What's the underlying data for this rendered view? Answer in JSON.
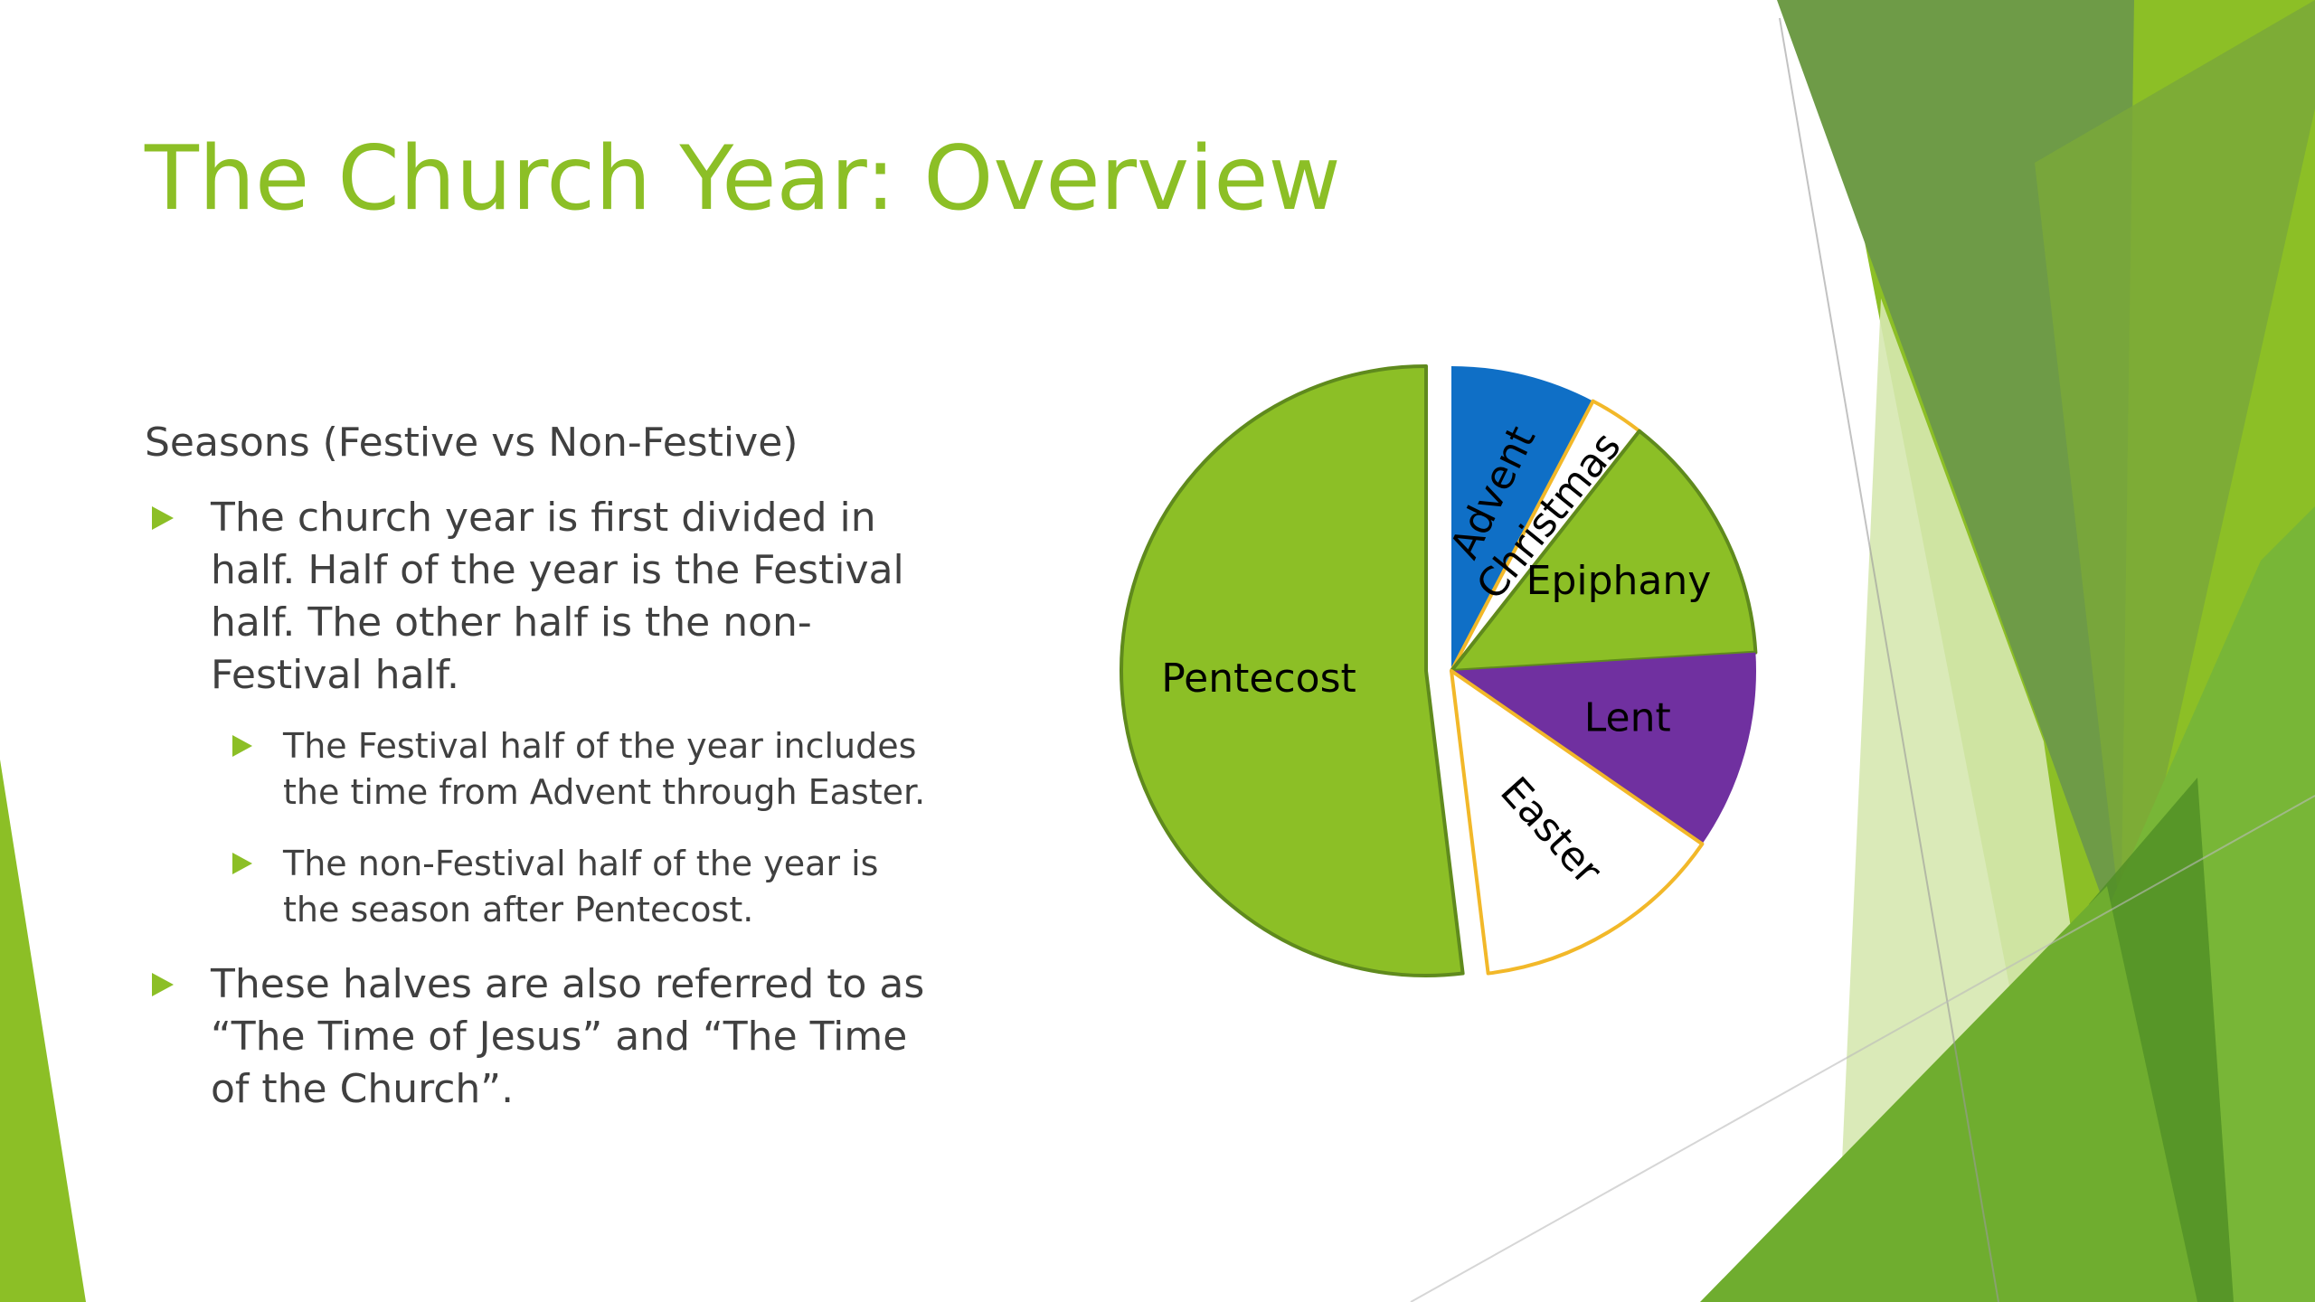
{
  "slide": {
    "title": "The Church Year: Overview",
    "subtitle": "Seasons (Festive vs Non-Festive)",
    "bullets": [
      "The church year is first divided in half. Half of the year is the Festival half. The other half is the non-Festival half.",
      "These halves are also referred to as “The Time of Jesus” and “The Time of the Church”."
    ],
    "sub_bullets": [
      "The Festival half of the year includes the time from Advent through Easter.",
      "The non-Festival half of the year is the season after Pentecost."
    ]
  },
  "colors": {
    "accent": "#8cbf26",
    "text": "#404040",
    "advent": "#0f6fc6",
    "purple": "#7030a0",
    "white_slice": "#ffffff",
    "gold_outline": "#f2b829",
    "green_outline": "#5f8a1d"
  },
  "chart_data": {
    "type": "pie",
    "title": "",
    "explosion": "Pentecost slice pulled apart to the left",
    "slices": [
      {
        "label": "Advent",
        "value": 4,
        "color": "#0f6fc6"
      },
      {
        "label": "Christmas",
        "value": 1.5,
        "color": "#ffffff"
      },
      {
        "label": "Epiphany",
        "value": 7,
        "color": "#8cbf26"
      },
      {
        "label": "Lent",
        "value": 5.5,
        "color": "#7030a0"
      },
      {
        "label": "Easter",
        "value": 7,
        "color": "#ffffff"
      },
      {
        "label": "Pentecost",
        "value": 27,
        "color": "#8cbf26"
      }
    ]
  }
}
